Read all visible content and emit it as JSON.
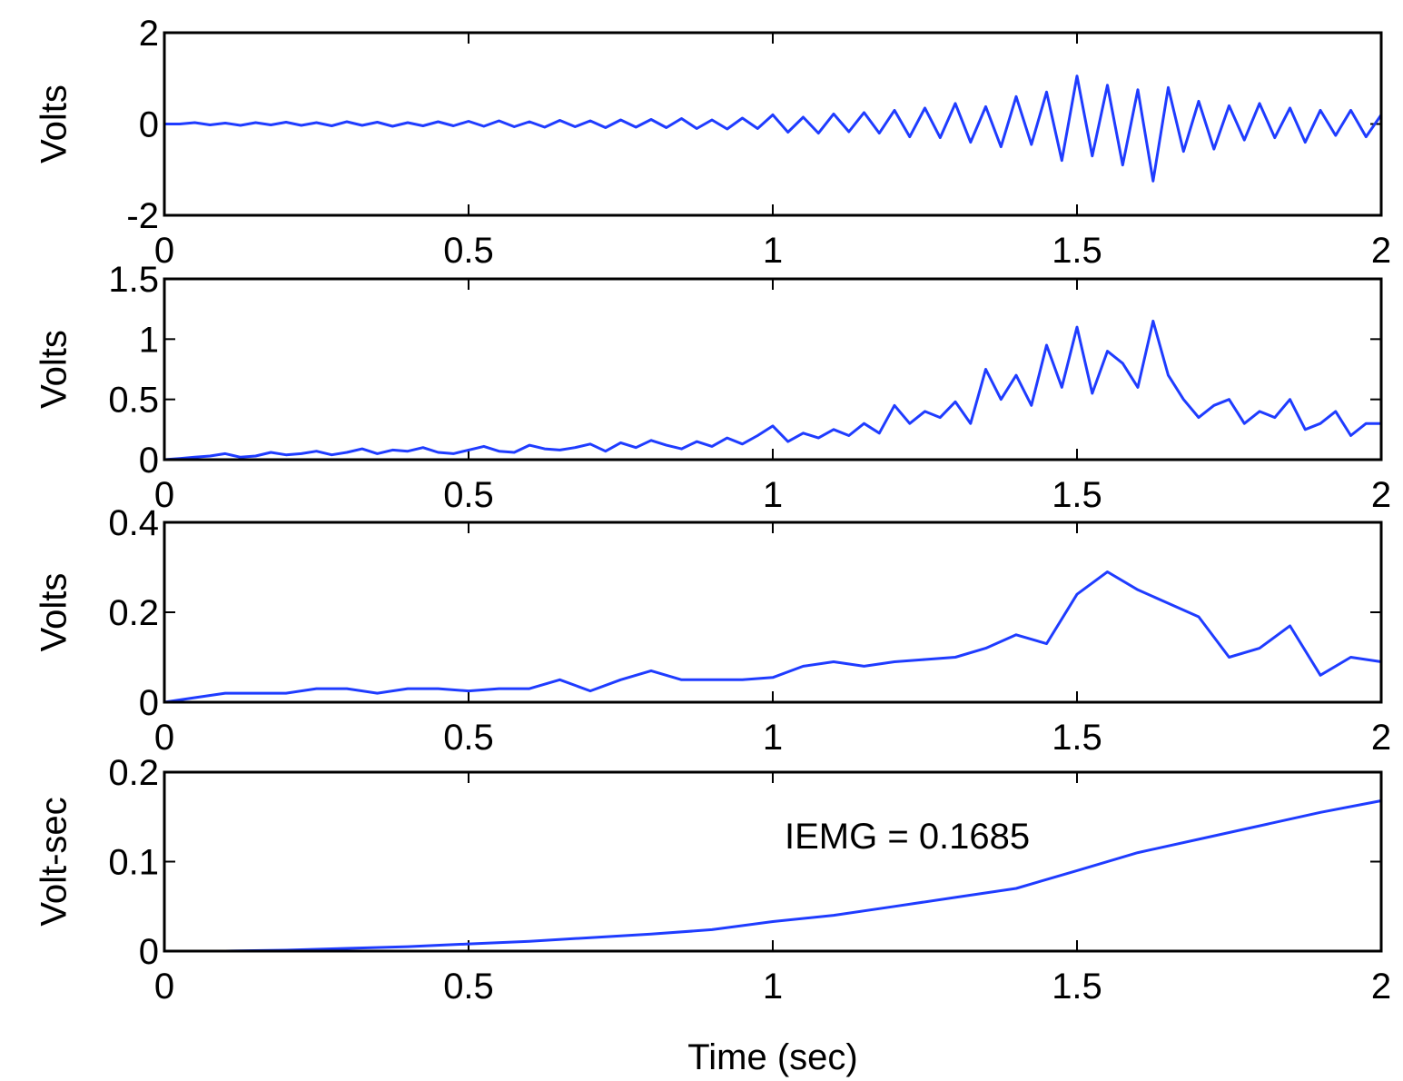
{
  "chart_data": [
    {
      "type": "line",
      "ylabel": "Volts",
      "color": "#1f3cff",
      "xlim": [
        0,
        2
      ],
      "xticks": [
        0,
        0.5,
        1,
        1.5,
        2
      ],
      "ylim": [
        -2,
        2
      ],
      "yticks": [
        -2,
        0,
        2
      ],
      "grid": false,
      "x": [
        0,
        0.025,
        0.05,
        0.075,
        0.1,
        0.125,
        0.15,
        0.175,
        0.2,
        0.225,
        0.25,
        0.275,
        0.3,
        0.325,
        0.35,
        0.375,
        0.4,
        0.425,
        0.45,
        0.475,
        0.5,
        0.525,
        0.55,
        0.575,
        0.6,
        0.625,
        0.65,
        0.675,
        0.7,
        0.725,
        0.75,
        0.775,
        0.8,
        0.825,
        0.85,
        0.875,
        0.9,
        0.925,
        0.95,
        0.975,
        1,
        1.025,
        1.05,
        1.075,
        1.1,
        1.125,
        1.15,
        1.175,
        1.2,
        1.225,
        1.25,
        1.275,
        1.3,
        1.325,
        1.35,
        1.375,
        1.4,
        1.425,
        1.45,
        1.475,
        1.5,
        1.525,
        1.55,
        1.575,
        1.6,
        1.625,
        1.65,
        1.675,
        1.7,
        1.725,
        1.75,
        1.775,
        1.8,
        1.825,
        1.85,
        1.875,
        1.9,
        1.925,
        1.95,
        1.975,
        2
      ],
      "values": [
        0,
        0,
        0.03,
        -0.02,
        0.02,
        -0.03,
        0.03,
        -0.02,
        0.04,
        -0.03,
        0.03,
        -0.04,
        0.05,
        -0.03,
        0.04,
        -0.05,
        0.03,
        -0.04,
        0.05,
        -0.04,
        0.06,
        -0.05,
        0.07,
        -0.06,
        0.05,
        -0.07,
        0.08,
        -0.06,
        0.07,
        -0.08,
        0.09,
        -0.07,
        0.1,
        -0.08,
        0.12,
        -0.1,
        0.09,
        -0.11,
        0.13,
        -0.1,
        0.2,
        -0.18,
        0.15,
        -0.2,
        0.22,
        -0.17,
        0.25,
        -0.2,
        0.3,
        -0.28,
        0.35,
        -0.3,
        0.45,
        -0.4,
        0.38,
        -0.5,
        0.6,
        -0.45,
        0.7,
        -0.8,
        1.05,
        -0.7,
        0.85,
        -0.9,
        0.75,
        -1.25,
        0.8,
        -0.6,
        0.5,
        -0.55,
        0.4,
        -0.35,
        0.45,
        -0.3,
        0.35,
        -0.4,
        0.3,
        -0.25,
        0.3,
        -0.28,
        0.2
      ]
    },
    {
      "type": "line",
      "ylabel": "Volts",
      "color": "#1f3cff",
      "xlim": [
        0,
        2
      ],
      "xticks": [
        0,
        0.5,
        1,
        1.5,
        2
      ],
      "ylim": [
        0,
        1.5
      ],
      "yticks": [
        0,
        0.5,
        1,
        1.5
      ],
      "grid": false,
      "x": [
        0,
        0.025,
        0.05,
        0.075,
        0.1,
        0.125,
        0.15,
        0.175,
        0.2,
        0.225,
        0.25,
        0.275,
        0.3,
        0.325,
        0.35,
        0.375,
        0.4,
        0.425,
        0.45,
        0.475,
        0.5,
        0.525,
        0.55,
        0.575,
        0.6,
        0.625,
        0.65,
        0.675,
        0.7,
        0.725,
        0.75,
        0.775,
        0.8,
        0.825,
        0.85,
        0.875,
        0.9,
        0.925,
        0.95,
        0.975,
        1,
        1.025,
        1.05,
        1.075,
        1.1,
        1.125,
        1.15,
        1.175,
        1.2,
        1.225,
        1.25,
        1.275,
        1.3,
        1.325,
        1.35,
        1.375,
        1.4,
        1.425,
        1.45,
        1.475,
        1.5,
        1.525,
        1.55,
        1.575,
        1.6,
        1.625,
        1.65,
        1.675,
        1.7,
        1.725,
        1.75,
        1.775,
        1.8,
        1.825,
        1.85,
        1.875,
        1.9,
        1.925,
        1.95,
        1.975,
        2
      ],
      "values": [
        0,
        0.01,
        0.02,
        0.03,
        0.05,
        0.02,
        0.03,
        0.06,
        0.04,
        0.05,
        0.07,
        0.04,
        0.06,
        0.09,
        0.05,
        0.08,
        0.07,
        0.1,
        0.06,
        0.05,
        0.08,
        0.11,
        0.07,
        0.06,
        0.12,
        0.09,
        0.08,
        0.1,
        0.13,
        0.07,
        0.14,
        0.1,
        0.16,
        0.12,
        0.09,
        0.15,
        0.11,
        0.18,
        0.13,
        0.2,
        0.28,
        0.15,
        0.22,
        0.18,
        0.25,
        0.2,
        0.3,
        0.22,
        0.45,
        0.3,
        0.4,
        0.35,
        0.48,
        0.3,
        0.75,
        0.5,
        0.7,
        0.45,
        0.95,
        0.6,
        1.1,
        0.55,
        0.9,
        0.8,
        0.6,
        1.15,
        0.7,
        0.5,
        0.35,
        0.45,
        0.5,
        0.3,
        0.4,
        0.35,
        0.5,
        0.25,
        0.3,
        0.4,
        0.2,
        0.3,
        0.3
      ]
    },
    {
      "type": "line",
      "ylabel": "Volts",
      "color": "#1f3cff",
      "xlim": [
        0,
        2
      ],
      "xticks": [
        0,
        0.5,
        1,
        1.5,
        2
      ],
      "ylim": [
        0,
        0.4
      ],
      "yticks": [
        0,
        0.2,
        0.4
      ],
      "grid": false,
      "x": [
        0,
        0.05,
        0.1,
        0.15,
        0.2,
        0.25,
        0.3,
        0.35,
        0.4,
        0.45,
        0.5,
        0.55,
        0.6,
        0.65,
        0.7,
        0.75,
        0.8,
        0.85,
        0.9,
        0.95,
        1,
        1.05,
        1.1,
        1.15,
        1.2,
        1.25,
        1.3,
        1.35,
        1.4,
        1.45,
        1.5,
        1.55,
        1.6,
        1.65,
        1.7,
        1.75,
        1.8,
        1.85,
        1.9,
        1.95,
        2
      ],
      "values": [
        0,
        0.01,
        0.02,
        0.02,
        0.02,
        0.03,
        0.03,
        0.02,
        0.03,
        0.03,
        0.025,
        0.03,
        0.03,
        0.05,
        0.025,
        0.05,
        0.07,
        0.05,
        0.05,
        0.05,
        0.055,
        0.08,
        0.09,
        0.08,
        0.09,
        0.095,
        0.1,
        0.12,
        0.15,
        0.13,
        0.24,
        0.29,
        0.25,
        0.22,
        0.19,
        0.1,
        0.12,
        0.17,
        0.06,
        0.1,
        0.09
      ]
    },
    {
      "type": "line",
      "ylabel": "Volt-sec",
      "xlabel": "Time (sec)",
      "annotation": "IEMG = 0.1685",
      "color": "#1f3cff",
      "xlim": [
        0,
        2
      ],
      "xticks": [
        0,
        0.5,
        1,
        1.5,
        2
      ],
      "ylim": [
        0,
        0.2
      ],
      "yticks": [
        0,
        0.1,
        0.2
      ],
      "grid": false,
      "x": [
        0,
        0.1,
        0.2,
        0.3,
        0.4,
        0.5,
        0.6,
        0.7,
        0.8,
        0.9,
        1,
        1.1,
        1.2,
        1.3,
        1.4,
        1.5,
        1.6,
        1.7,
        1.8,
        1.9,
        2
      ],
      "values": [
        0,
        0,
        0.001,
        0.003,
        0.005,
        0.008,
        0.011,
        0.015,
        0.019,
        0.024,
        0.033,
        0.04,
        0.05,
        0.06,
        0.07,
        0.09,
        0.11,
        0.125,
        0.14,
        0.155,
        0.168
      ]
    }
  ]
}
